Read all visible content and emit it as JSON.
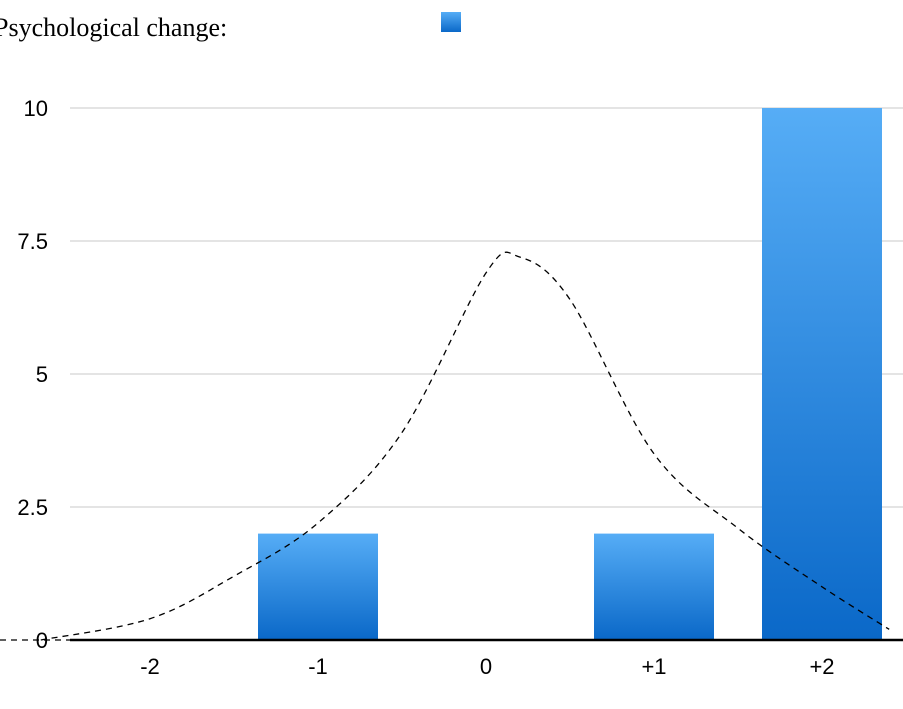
{
  "chart_data": {
    "type": "bar",
    "title": "Psychological change:",
    "categories": [
      "-2",
      "-1",
      "0",
      "+1",
      "+2"
    ],
    "series": [
      {
        "values": [
          0,
          2,
          0,
          2,
          10
        ],
        "color": "#1f77d4"
      }
    ],
    "overlay_curve": {
      "style": "dashed",
      "color": "#000000",
      "x": [
        -2.65,
        -2.0,
        -1.5,
        -1.0,
        -0.5,
        0.0,
        0.2,
        0.5,
        1.0,
        1.5,
        2.0,
        2.4
      ],
      "y": [
        0.0,
        0.4,
        1.2,
        2.2,
        3.9,
        6.9,
        7.2,
        6.4,
        3.5,
        2.1,
        1.0,
        0.2
      ]
    },
    "ylim": [
      0,
      10
    ],
    "yticks": [
      0,
      2.5,
      5,
      7.5,
      10
    ],
    "ytick_labels": [
      "0",
      "2.5",
      "5",
      "7.5",
      "10"
    ],
    "grid": true,
    "legend_position": "top",
    "xlabel": "",
    "ylabel": ""
  }
}
